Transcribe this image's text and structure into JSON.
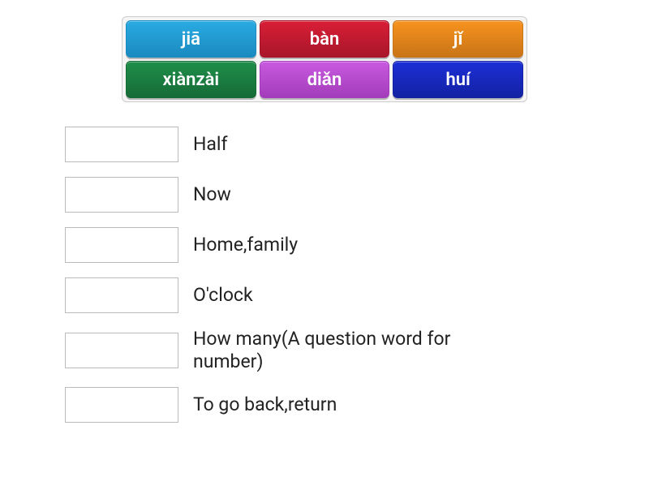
{
  "wordBank": {
    "tiles": [
      {
        "label": "jiā",
        "bg": "#29abe2",
        "border": "#1a8ac0"
      },
      {
        "label": "bàn",
        "bg": "#d91e36",
        "border": "#a8162a"
      },
      {
        "label": "jǐ",
        "bg": "#f7931e",
        "border": "#c87417"
      },
      {
        "label": "xiànzài",
        "bg": "#1f8f4a",
        "border": "#166b37"
      },
      {
        "label": "diǎn",
        "bg": "#c85adf",
        "border": "#a33cba"
      },
      {
        "label": "huí",
        "bg": "#1c2fd6",
        "border": "#1322a3"
      }
    ],
    "bank_bg": "#f5f5f5",
    "bank_border": "#cccccc"
  },
  "matches": {
    "items": [
      {
        "definition": "Half"
      },
      {
        "definition": "Now"
      },
      {
        "definition": "Home,family"
      },
      {
        "definition": "O'clock"
      },
      {
        "definition": "How many(A question word for number)"
      },
      {
        "definition": "To go back,return"
      }
    ],
    "slot_border": "#bbbbbb"
  }
}
